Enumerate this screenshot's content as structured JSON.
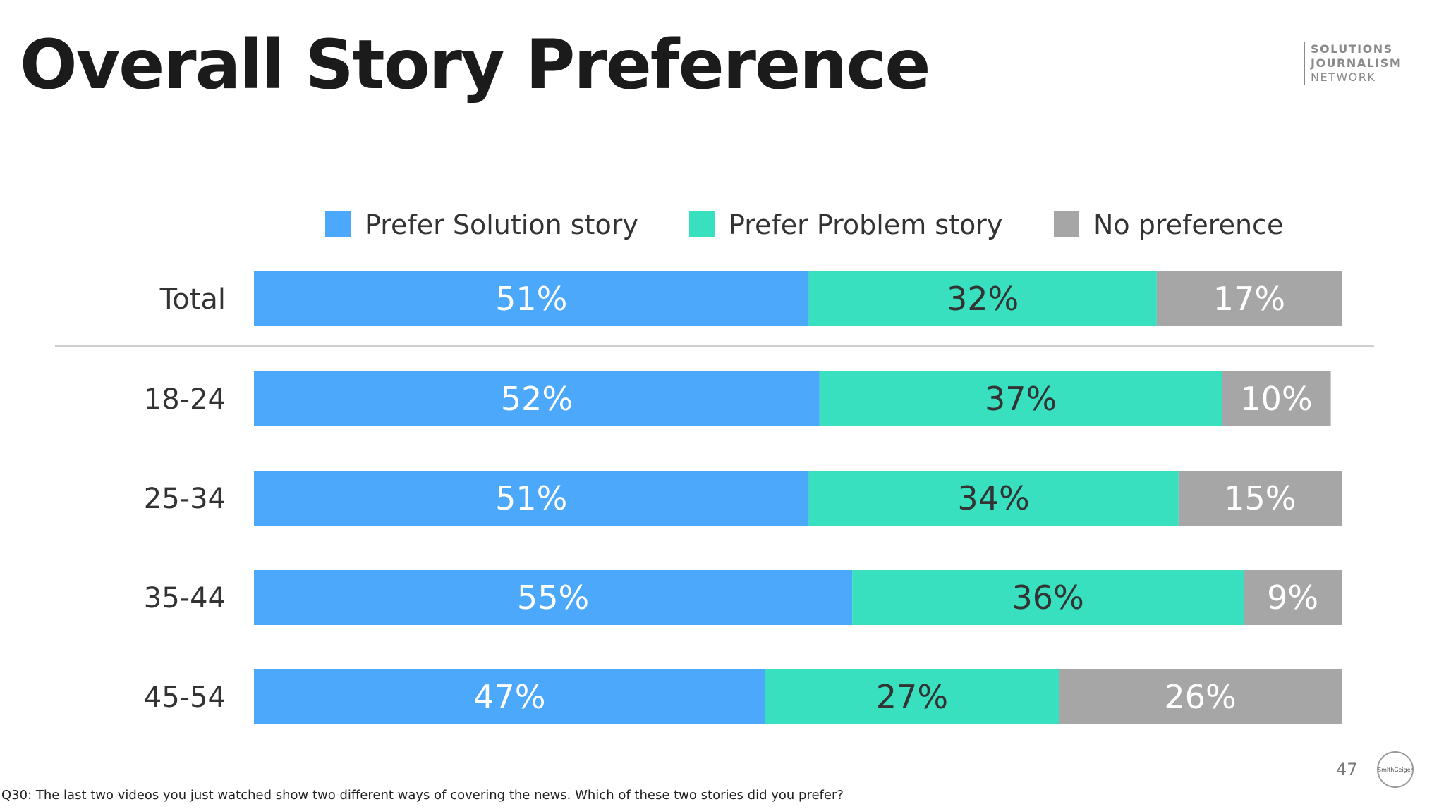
{
  "slide": {
    "title": "Overall Story Preference",
    "logo_lines": [
      "SOLUTIONS",
      "JOURNALISM",
      "NETWORK"
    ],
    "page_number": "47",
    "badge_text": "SmithGeiger",
    "footnote": "Q30: The last two videos you just watched show two different ways of covering the news.  Which of these two stories did you prefer?"
  },
  "chart_data": {
    "type": "bar",
    "orientation": "horizontal",
    "stacked": true,
    "percent_stacked": true,
    "legend_position": "top",
    "categories": [
      "Total",
      "18-24",
      "25-34",
      "35-44",
      "45-54"
    ],
    "series": [
      {
        "name": "Prefer Solution story",
        "color": "#4ca8fa",
        "label_color": "#ffffff",
        "values": [
          51,
          52,
          51,
          55,
          47
        ]
      },
      {
        "name": "Prefer Problem story",
        "color": "#38e0bf",
        "label_color": "#333333",
        "values": [
          32,
          37,
          34,
          36,
          27
        ]
      },
      {
        "name": "No preference",
        "color": "#a6a6a6",
        "label_color": "#ffffff",
        "values": [
          17,
          10,
          15,
          9,
          26
        ]
      }
    ],
    "data_labels": [
      [
        "51%",
        "32%",
        "17%"
      ],
      [
        "52%",
        "37%",
        "10%"
      ],
      [
        "51%",
        "34%",
        "15%"
      ],
      [
        "55%",
        "36%",
        "9%"
      ],
      [
        "47%",
        "27%",
        "26%"
      ]
    ],
    "separator_after_first_row": true
  }
}
